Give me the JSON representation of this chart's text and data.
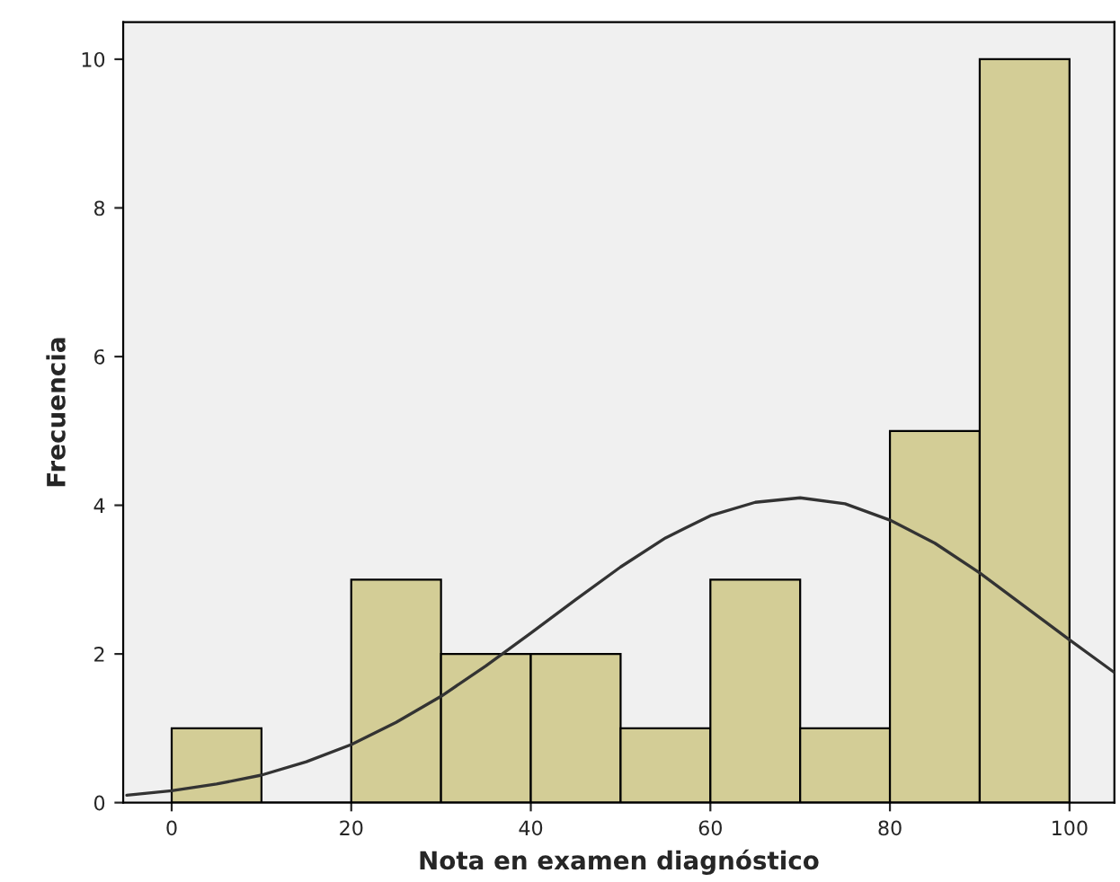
{
  "chart_data": {
    "type": "histogram",
    "xlabel": "Nota en examen diagnóstico",
    "ylabel": "Frecuencia",
    "bins": [
      0,
      10,
      20,
      30,
      40,
      50,
      60,
      70,
      80,
      90,
      100
    ],
    "values": [
      1,
      0,
      3,
      2,
      2,
      1,
      3,
      1,
      5,
      10
    ],
    "color": "#d3cd96",
    "series": [
      {
        "type": "line",
        "color": "#333333",
        "x": [
          -5,
          0,
          5,
          10,
          15,
          20,
          25,
          30,
          35,
          40,
          45,
          50,
          55,
          60,
          65,
          70,
          75,
          80,
          85,
          90,
          95,
          100,
          105
        ],
        "values": [
          0.1,
          0.16,
          0.25,
          0.37,
          0.55,
          0.78,
          1.08,
          1.43,
          1.84,
          2.28,
          2.73,
          3.17,
          3.56,
          3.86,
          4.04,
          4.1,
          4.02,
          3.8,
          3.49,
          3.09,
          2.64,
          2.19,
          1.75
        ]
      }
    ],
    "xlim": [
      -5.4,
      105
    ],
    "ylim": [
      0,
      10.5
    ],
    "xticks": [
      0,
      20,
      40,
      60,
      80,
      100
    ],
    "yticks": [
      0,
      2,
      4,
      6,
      8,
      10
    ],
    "grid": false,
    "legend": false
  }
}
